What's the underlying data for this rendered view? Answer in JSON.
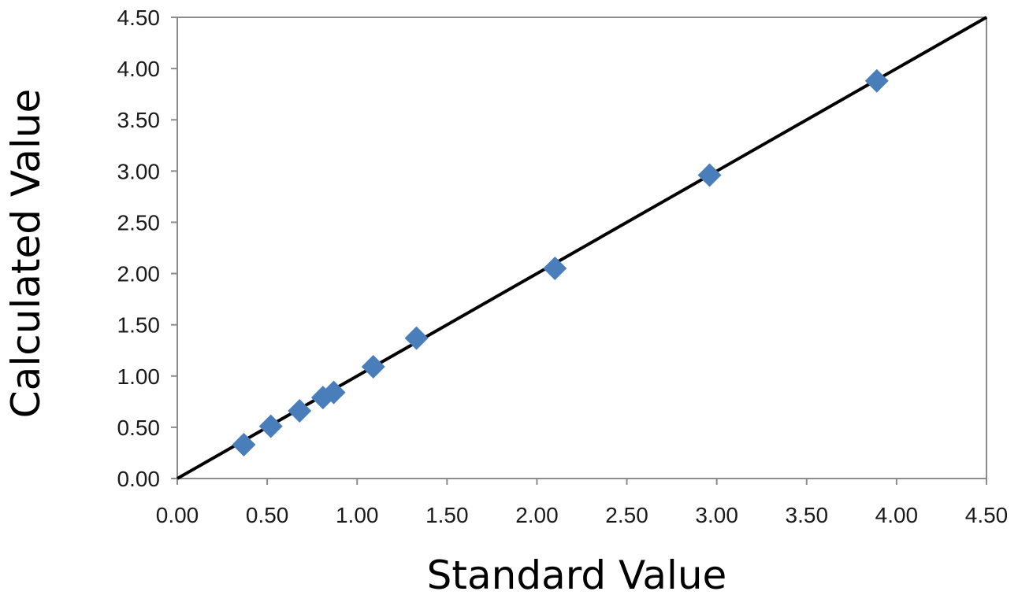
{
  "chart_data": {
    "type": "scatter",
    "title": "",
    "xlabel": "Standard Value",
    "ylabel": "Calculated Value",
    "xlim": [
      0,
      4.5
    ],
    "ylim": [
      0,
      4.5
    ],
    "x_ticks": [
      "0.00",
      "0.50",
      "1.00",
      "1.50",
      "2.00",
      "2.50",
      "3.00",
      "3.50",
      "4.00",
      "4.50"
    ],
    "y_ticks": [
      "0.00",
      "0.50",
      "1.00",
      "1.50",
      "2.00",
      "2.50",
      "3.00",
      "3.50",
      "4.00",
      "4.50"
    ],
    "grid": false,
    "legend": "none",
    "marker": "diamond",
    "series": [
      {
        "points": [
          [
            0.37,
            0.33
          ],
          [
            0.52,
            0.51
          ],
          [
            0.68,
            0.66
          ],
          [
            0.81,
            0.79
          ],
          [
            0.87,
            0.84
          ],
          [
            1.09,
            1.09
          ],
          [
            1.33,
            1.37
          ],
          [
            2.1,
            2.05
          ],
          [
            2.96,
            2.96
          ],
          [
            3.89,
            3.88
          ]
        ]
      }
    ],
    "reference_line": {
      "from": [
        0,
        0
      ],
      "to": [
        4.5,
        4.5
      ]
    },
    "colors": {
      "marker": "#4a7ebb",
      "line": "#000000",
      "frame": "#8c8c8c"
    }
  }
}
